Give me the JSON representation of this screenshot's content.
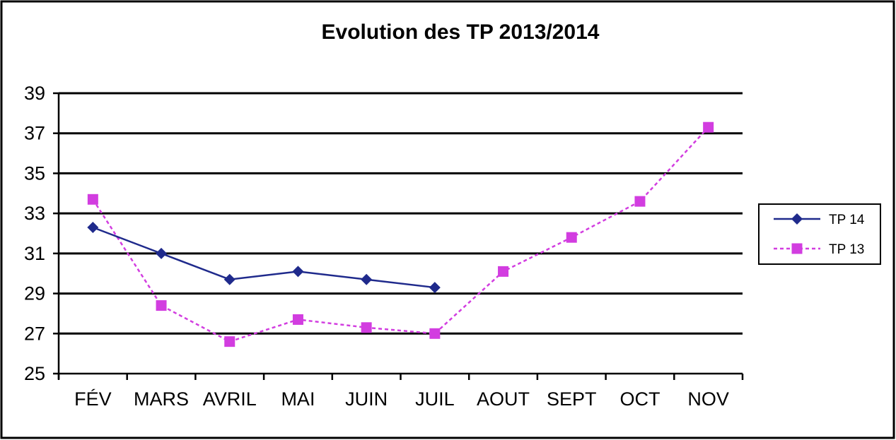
{
  "chart_data": {
    "type": "line",
    "title": "Evolution des TP 2013/2014",
    "xlabel": "",
    "ylabel": "",
    "categories": [
      "FÉV",
      "MARS",
      "AVRIL",
      "MAI",
      "JUIN",
      "JUIL",
      "AOUT",
      "SEPT",
      "OCT",
      "NOV"
    ],
    "ylim": [
      25,
      39
    ],
    "yticks": [
      "25",
      "27",
      "29",
      "31",
      "33",
      "35",
      "37",
      "39"
    ],
    "grid": true,
    "legend_position": "right",
    "series": [
      {
        "name": "TP 14",
        "color": "#1f2a8c",
        "line_style": "solid",
        "marker": "diamond",
        "values": [
          32.3,
          31.0,
          29.7,
          30.1,
          29.7,
          29.3,
          null,
          null,
          null,
          null
        ]
      },
      {
        "name": "TP 13",
        "color": "#d23de0",
        "line_style": "dashed",
        "marker": "square",
        "values": [
          33.7,
          28.4,
          26.6,
          27.7,
          27.3,
          27.0,
          30.1,
          31.8,
          33.6,
          37.3
        ]
      }
    ]
  }
}
